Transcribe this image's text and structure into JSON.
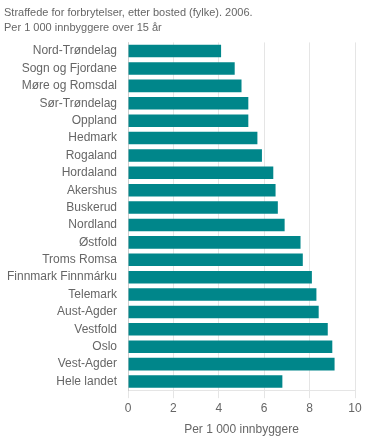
{
  "chart_data": {
    "type": "bar",
    "title": "Straffede for forbrytelser, etter bosted (fylke). 2006.",
    "subtitle": "Per 1 000 innbyggere over 15 år",
    "categories": [
      "Nord-Trøndelag",
      "Sogn og Fjordane",
      "Møre og Romsdal",
      "Sør-Trøndelag",
      "Oppland",
      "Hedmark",
      "Rogaland",
      "Hordaland",
      "Akershus",
      "Buskerud",
      "Nordland",
      "Østfold",
      "Troms Romsa",
      "Finnmark Finnmárku",
      "Telemark",
      "Aust-Agder",
      "Vestfold",
      "Oslo",
      "Vest-Agder",
      "Hele landet"
    ],
    "values": [
      4.1,
      4.7,
      5.0,
      5.3,
      5.3,
      5.7,
      5.9,
      6.4,
      6.5,
      6.6,
      6.9,
      7.6,
      7.7,
      8.1,
      8.3,
      8.4,
      8.8,
      9.0,
      9.1,
      6.8
    ],
    "color": "#00868a",
    "orientation": "horizontal",
    "xlabel": "Per 1 000 innbyggere",
    "xlim": [
      0,
      10
    ],
    "xticks": [
      0,
      2,
      4,
      6,
      8,
      10
    ],
    "grid": true
  }
}
